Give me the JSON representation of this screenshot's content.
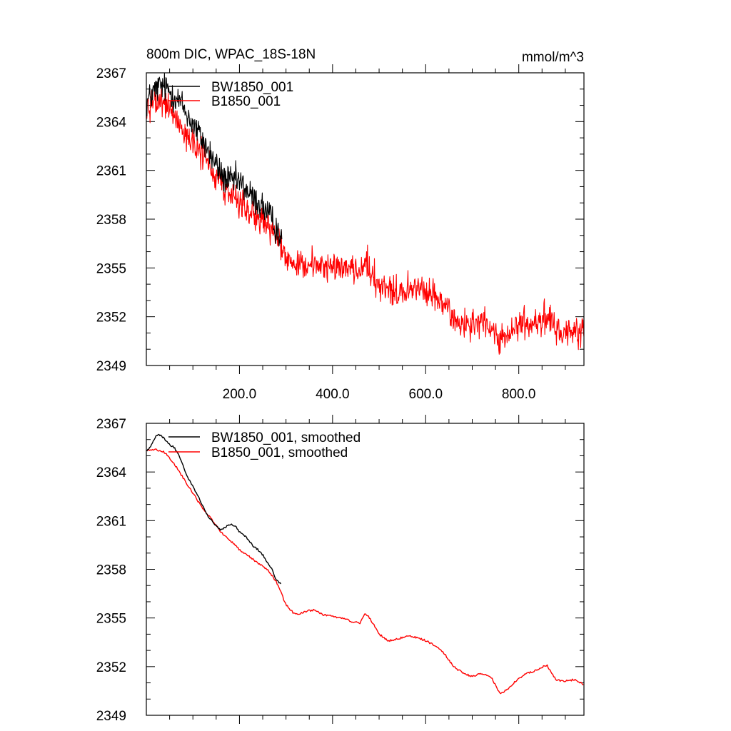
{
  "chart_data": [
    {
      "type": "line",
      "title": "800m DIC, WPAC_18S-18N",
      "units_label": "mmol/m^3",
      "xlabel": "",
      "ylabel": "",
      "xlim": [
        0,
        940
      ],
      "ylim": [
        2349,
        2367
      ],
      "y_ticks": [
        2349,
        2352,
        2355,
        2358,
        2361,
        2364,
        2367
      ],
      "y_tick_labels": [
        "2349",
        "2352",
        "2355",
        "2358",
        "2361",
        "2364",
        "2367"
      ],
      "x_ticks": [
        200,
        400,
        600,
        800
      ],
      "x_tick_labels": [
        "200.0",
        "400.0",
        "600.0",
        "800.0"
      ],
      "legend": "top-left",
      "series": [
        {
          "name": "BW1850_001",
          "color": "#000000",
          "noisy": true,
          "x": [
            1,
            15,
            30,
            45,
            60,
            75,
            90,
            105,
            120,
            135,
            150,
            165,
            180,
            195,
            210,
            225,
            240,
            255,
            270,
            285,
            291
          ],
          "y": [
            2365.2,
            2365.8,
            2366.2,
            2366.0,
            2365.6,
            2365.1,
            2364.3,
            2363.6,
            2362.9,
            2362.1,
            2361.3,
            2360.6,
            2360.3,
            2360.4,
            2360.0,
            2359.4,
            2359.0,
            2358.6,
            2357.9,
            2357.2,
            2356.7
          ]
        },
        {
          "name": "B1850_001",
          "color": "#ff0000",
          "noisy": true,
          "x": [
            1,
            20,
            40,
            60,
            80,
            100,
            120,
            140,
            160,
            180,
            200,
            220,
            240,
            260,
            280,
            300,
            320,
            340,
            360,
            380,
            400,
            420,
            440,
            460,
            470,
            480,
            500,
            520,
            540,
            560,
            580,
            600,
            620,
            640,
            660,
            680,
            700,
            720,
            740,
            760,
            780,
            800,
            820,
            840,
            860,
            880,
            900,
            920,
            940
          ],
          "y": [
            2365.3,
            2365.3,
            2365.1,
            2364.4,
            2363.5,
            2362.6,
            2361.9,
            2361.0,
            2360.2,
            2359.6,
            2359.0,
            2358.5,
            2358.2,
            2357.8,
            2357.0,
            2355.7,
            2355.2,
            2355.3,
            2355.4,
            2355.1,
            2355.0,
            2355.2,
            2354.8,
            2354.9,
            2355.3,
            2354.9,
            2354.0,
            2353.7,
            2353.6,
            2353.5,
            2353.9,
            2353.5,
            2353.3,
            2352.8,
            2352.0,
            2351.6,
            2351.4,
            2351.8,
            2351.3,
            2350.4,
            2350.8,
            2351.3,
            2351.6,
            2351.7,
            2352.0,
            2351.3,
            2351.0,
            2351.1,
            2350.9
          ]
        }
      ]
    },
    {
      "type": "line",
      "title": "",
      "xlabel": "",
      "ylabel": "",
      "xlim": [
        0,
        940
      ],
      "ylim": [
        2349,
        2367
      ],
      "y_ticks": [
        2349,
        2352,
        2355,
        2358,
        2361,
        2364,
        2367
      ],
      "y_tick_labels": [
        "2349",
        "2352",
        "2355",
        "2358",
        "2361",
        "2364",
        "2367"
      ],
      "x_ticks": [
        200,
        400,
        600,
        800
      ],
      "x_tick_labels": [],
      "legend": "top-left",
      "series": [
        {
          "name": "BW1850_001, smoothed",
          "color": "#000000",
          "noisy": false,
          "x": [
            1,
            10,
            20,
            30,
            40,
            50,
            60,
            70,
            80,
            90,
            100,
            110,
            120,
            130,
            140,
            150,
            160,
            170,
            180,
            190,
            200,
            210,
            220,
            230,
            240,
            250,
            260,
            270,
            280,
            290
          ],
          "y": [
            2365.3,
            2365.6,
            2366.2,
            2366.3,
            2366.0,
            2365.7,
            2365.5,
            2365.0,
            2364.3,
            2363.6,
            2363.1,
            2362.6,
            2362.0,
            2361.4,
            2361.0,
            2360.7,
            2360.4,
            2360.6,
            2360.8,
            2360.7,
            2360.3,
            2360.1,
            2359.8,
            2359.4,
            2359.2,
            2358.9,
            2358.4,
            2358.0,
            2357.3,
            2357.1
          ]
        },
        {
          "name": "B1850_001, smoothed",
          "color": "#ff0000",
          "noisy": false,
          "x": [
            1,
            20,
            40,
            60,
            80,
            100,
            120,
            140,
            160,
            180,
            200,
            220,
            240,
            260,
            280,
            300,
            320,
            340,
            360,
            380,
            400,
            420,
            440,
            460,
            470,
            480,
            500,
            520,
            540,
            560,
            580,
            600,
            620,
            640,
            660,
            680,
            700,
            720,
            740,
            760,
            780,
            800,
            820,
            840,
            860,
            880,
            900,
            920,
            940
          ],
          "y": [
            2365.3,
            2365.4,
            2365.2,
            2364.5,
            2363.6,
            2362.7,
            2361.8,
            2361.1,
            2360.3,
            2359.8,
            2359.2,
            2358.8,
            2358.4,
            2358.0,
            2357.2,
            2355.8,
            2355.2,
            2355.4,
            2355.5,
            2355.2,
            2355.1,
            2355.0,
            2354.8,
            2354.7,
            2355.3,
            2355.0,
            2354.0,
            2353.6,
            2353.7,
            2353.9,
            2353.8,
            2353.6,
            2353.3,
            2352.8,
            2352.0,
            2351.6,
            2351.4,
            2351.6,
            2351.4,
            2350.3,
            2350.7,
            2351.3,
            2351.6,
            2351.8,
            2352.1,
            2351.2,
            2351.1,
            2351.2,
            2350.9
          ]
        }
      ]
    }
  ]
}
